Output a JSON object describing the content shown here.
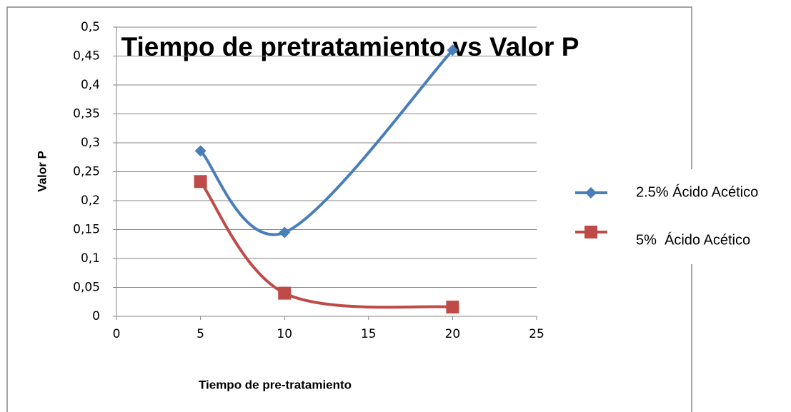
{
  "chart_data": {
    "type": "scatter",
    "title": "Tiempo de pretratamiento vs Valor P",
    "xlabel": "Tiempo de pre-tratamiento",
    "ylabel": "Valor P",
    "x": [
      5,
      10,
      20
    ],
    "series": [
      {
        "name": "2.5% Ácido Acético",
        "color": "#4a7ebb",
        "marker": "diamond",
        "values": [
          0.286,
          0.145,
          0.46
        ]
      },
      {
        "name": "5%  Ácido Acético",
        "color": "#be4b48",
        "marker": "square",
        "values": [
          0.233,
          0.04,
          0.016
        ]
      }
    ],
    "smooth": true,
    "xlim": [
      0,
      25
    ],
    "xticks": [
      0,
      5,
      10,
      15,
      20,
      25
    ],
    "ylim": [
      0,
      0.5
    ],
    "yticks": [
      0,
      {
        "value": 0.05,
        "label": "0,05"
      },
      {
        "value": 0.1,
        "label": "0,1"
      },
      {
        "value": 0.15,
        "label": "0,15"
      },
      {
        "value": 0.2,
        "label": "0,2"
      },
      {
        "value": 0.25,
        "label": "0,25"
      },
      {
        "value": 0.3,
        "label": "0,3"
      },
      {
        "value": 0.35,
        "label": "0,35"
      },
      {
        "value": 0.4,
        "label": "0,4"
      },
      {
        "value": 0.45,
        "label": "0,45"
      },
      {
        "value": 0.5,
        "label": "0,5"
      }
    ],
    "grid": true,
    "legend": "right"
  }
}
